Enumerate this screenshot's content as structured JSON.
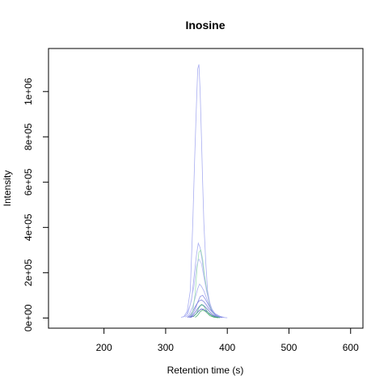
{
  "chart_data": {
    "type": "line",
    "title": "Inosine",
    "xlabel": "Retention time (s)",
    "ylabel": "Intensity",
    "xlim": [
      110,
      620
    ],
    "ylim": [
      -45000,
      1190000
    ],
    "xticks": [
      200,
      300,
      400,
      500,
      600
    ],
    "xtick_labels": [
      "200",
      "300",
      "400",
      "500",
      "600"
    ],
    "yticks": [
      0,
      200000,
      400000,
      600000,
      800000,
      1000000
    ],
    "ytick_labels": [
      "0e+00",
      "2e+05",
      "4e+05",
      "6e+05",
      "8e+05",
      "1e+06"
    ],
    "grid": false,
    "series": [
      {
        "color": "#9aa0ee",
        "x": [
          325,
          330,
          335,
          340,
          344,
          347,
          350,
          352,
          354,
          356,
          358,
          360,
          362,
          365,
          368,
          372,
          376,
          380,
          385,
          390,
          395,
          400
        ],
        "y": [
          2000,
          8000,
          30000,
          120000,
          420000,
          700000,
          950000,
          1100000,
          1120000,
          1000000,
          800000,
          600000,
          420000,
          250000,
          120000,
          60000,
          30000,
          15000,
          8000,
          4000,
          2000,
          1000
        ]
      },
      {
        "color": "#9aa0ee",
        "x": [
          330,
          336,
          342,
          346,
          350,
          353,
          356,
          359,
          362,
          366,
          370,
          375,
          380,
          388,
          395
        ],
        "y": [
          5000,
          20000,
          80000,
          180000,
          280000,
          330000,
          310000,
          260000,
          200000,
          130000,
          80000,
          40000,
          20000,
          8000,
          3000
        ]
      },
      {
        "color": "#9aa0ee",
        "x": [
          332,
          338,
          344,
          348,
          352,
          355,
          358,
          362,
          366,
          370,
          376,
          382,
          390
        ],
        "y": [
          4000,
          15000,
          50000,
          90000,
          130000,
          150000,
          140000,
          120000,
          90000,
          60000,
          30000,
          15000,
          5000
        ]
      },
      {
        "color": "#6d72d8",
        "x": [
          335,
          340,
          345,
          350,
          354,
          358,
          362,
          366,
          370,
          375,
          380,
          386,
          392
        ],
        "y": [
          3000,
          12000,
          35000,
          60000,
          75000,
          80000,
          72000,
          58000,
          42000,
          28000,
          15000,
          6000,
          2000
        ]
      },
      {
        "color": "#5b60cc",
        "x": [
          338,
          343,
          348,
          352,
          356,
          360,
          364,
          368,
          372,
          377,
          383,
          390
        ],
        "y": [
          2000,
          9000,
          25000,
          42000,
          55000,
          58000,
          50000,
          38000,
          26000,
          14000,
          6000,
          2000
        ]
      },
      {
        "color": "#3a40b8",
        "x": [
          340,
          345,
          350,
          354,
          358,
          362,
          366,
          370,
          375,
          381,
          388
        ],
        "y": [
          2000,
          8000,
          20000,
          32000,
          40000,
          38000,
          30000,
          22000,
          12000,
          5000,
          1500
        ]
      },
      {
        "color": "#8fd9a8",
        "x": [
          340,
          344,
          348,
          351,
          354,
          357,
          360,
          363,
          367,
          371,
          376,
          382,
          390
        ],
        "y": [
          5000,
          30000,
          110000,
          220000,
          290000,
          300000,
          260000,
          190000,
          120000,
          60000,
          25000,
          8000,
          2000
        ]
      },
      {
        "color": "#4cbf7a",
        "x": [
          345,
          350,
          354,
          358,
          362,
          366,
          370,
          375,
          380,
          388
        ],
        "y": [
          5000,
          20000,
          45000,
          60000,
          52000,
          35000,
          20000,
          10000,
          4000,
          1000
        ]
      },
      {
        "color": "#2f9e5a",
        "x": [
          348,
          352,
          356,
          360,
          364,
          368,
          372,
          378,
          385
        ],
        "y": [
          3000,
          12000,
          28000,
          35000,
          30000,
          20000,
          10000,
          4000,
          1000
        ]
      },
      {
        "color": "#b4b8f2",
        "x": [
          328,
          334,
          340,
          346,
          350,
          354,
          358,
          362,
          367,
          373,
          380,
          390
        ],
        "y": [
          3000,
          15000,
          60000,
          140000,
          230000,
          260000,
          240000,
          180000,
          110000,
          50000,
          15000,
          3000
        ]
      },
      {
        "color": "#7a7fe0",
        "x": [
          336,
          342,
          348,
          352,
          356,
          360,
          364,
          369,
          375,
          382,
          390
        ],
        "y": [
          2000,
          10000,
          40000,
          70000,
          95000,
          100000,
          85000,
          60000,
          30000,
          10000,
          2000
        ]
      }
    ]
  }
}
